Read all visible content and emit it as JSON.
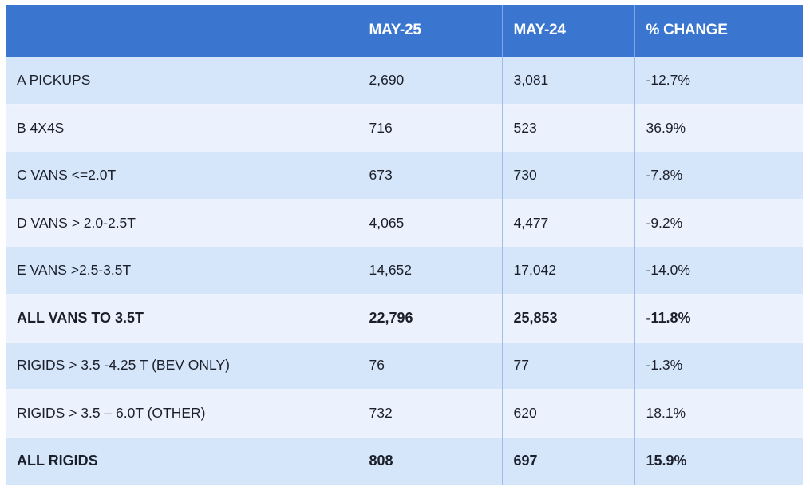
{
  "table": {
    "headers": [
      "",
      "MAY-25",
      "MAY-24",
      "% CHANGE"
    ],
    "rows": [
      {
        "cells": [
          "A PICKUPS",
          "2,690",
          "3,081",
          "-12.7%"
        ],
        "bold": false
      },
      {
        "cells": [
          "B 4X4S",
          "716",
          "523",
          "36.9%"
        ],
        "bold": false
      },
      {
        "cells": [
          "C VANS <=2.0T",
          "673",
          "730",
          "-7.8%"
        ],
        "bold": false
      },
      {
        "cells": [
          "D VANS > 2.0-2.5T",
          "4,065",
          "4,477",
          "-9.2%"
        ],
        "bold": false
      },
      {
        "cells": [
          "E VANS >2.5-3.5T",
          "14,652",
          "17,042",
          "-14.0%"
        ],
        "bold": false
      },
      {
        "cells": [
          "ALL VANS TO 3.5T",
          "22,796",
          "25,853",
          "-11.8%"
        ],
        "bold": true
      },
      {
        "cells": [
          "RIGIDS > 3.5 -4.25 T (BEV ONLY)",
          "76",
          "77",
          "-1.3%"
        ],
        "bold": false
      },
      {
        "cells": [
          "RIGIDS > 3.5 – 6.0T (OTHER)",
          "732",
          "620",
          "18.1%"
        ],
        "bold": false
      },
      {
        "cells": [
          "ALL RIGIDS",
          "808",
          "697",
          "15.9%"
        ],
        "bold": true
      }
    ]
  },
  "colors": {
    "header_bg": "#3a76cf",
    "row_dark": "#d5e5fa",
    "row_light": "#ebf2fd"
  }
}
